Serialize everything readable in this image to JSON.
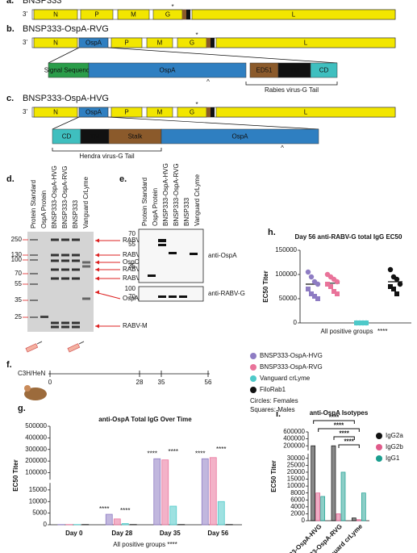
{
  "figure": {
    "a": {
      "label": "a.",
      "construct": "BNSP333",
      "end": "3'",
      "mark": "*",
      "genes": [
        "N",
        "P",
        "M",
        "G",
        "L"
      ]
    },
    "b": {
      "label": "b.",
      "construct": "BNSP333-OspA-RVG",
      "end": "3'",
      "mark": "*",
      "genes": [
        "N",
        "OspA",
        "P",
        "M",
        "G",
        "L"
      ],
      "domains": [
        "Signal Sequence",
        "OspA",
        "ED51",
        "TM",
        "CD"
      ],
      "caret": "^",
      "tail": "Rabies virus-G Tail"
    },
    "c": {
      "label": "c.",
      "construct": "BNSP333-OspA-HVG",
      "end": "3'",
      "mark": "*",
      "genes": [
        "N",
        "OspA",
        "P",
        "M",
        "G",
        "L"
      ],
      "domains": [
        "CD",
        "TM",
        "Stalk",
        "OspA"
      ],
      "caret": "^",
      "tail": "Hendra virus-G Tail"
    },
    "d": {
      "label": "d.",
      "lanes": [
        "Protein Standard",
        "OspA Protein",
        "BNSP333-OspA-HVG",
        "BNSP333-OspA-RVG",
        "BNSP333",
        "Vanguard CrLyme"
      ],
      "markers": [
        "250",
        "130",
        "100",
        "70",
        "55",
        "35",
        "25"
      ],
      "bands": [
        "RABV-L",
        "RABV-G",
        "OspC chimera",
        "RABV-N",
        "RABV-P",
        "OspA",
        "RABV-M"
      ]
    },
    "e": {
      "label": "e.",
      "lanes": [
        "Protein Standard",
        "OspA Protein",
        "BNSP333-OspA-HVG",
        "BNSP333-OspA-RVG",
        "BNSP333",
        "Vanguard CrLyme"
      ],
      "blots": [
        {
          "markers": [
            "70",
            "55",
            "35"
          ],
          "antibody": "anti-OspA"
        },
        {
          "markers": [
            "100",
            "70"
          ],
          "antibody": "anti-RABV-G"
        }
      ]
    },
    "f": {
      "label": "f.",
      "strain": "C3H/HeN",
      "days": [
        "0",
        "28",
        "35",
        "56"
      ],
      "groups": [
        {
          "name": "BNSP333-OspA-HVG",
          "color": "#8e7cc3"
        },
        {
          "name": "BNSP333-OspA-RVG",
          "color": "#e9739a"
        },
        {
          "name": "Vanguard crLyme",
          "color": "#4ec9c9"
        },
        {
          "name": "FiloRab1",
          "color": "#111111"
        }
      ],
      "shapes": [
        "Circles: Females",
        "Squares: Males"
      ]
    }
  },
  "chart_data": [
    {
      "type": "dotplot",
      "label": "h.",
      "title": "Day 56 anti-RABV-G total IgG EC50",
      "ylabel": "EC50 Titer",
      "xlabel": "All positive groups",
      "annotation": "****",
      "ylim": [
        0,
        150000
      ],
      "yticks": [
        0,
        50000,
        100000,
        150000
      ],
      "series": [
        {
          "color": "#8e7cc3",
          "values": 80000,
          "points": [
            105000,
            95000,
            85000,
            80000,
            70000,
            60000,
            55000,
            50000
          ]
        },
        {
          "color": "#e9739a",
          "values": 82000,
          "points": [
            100000,
            95000,
            90000,
            85000,
            80000,
            75000,
            65000,
            60000
          ]
        },
        {
          "color": "#4ec9c9",
          "values": 0,
          "points": [
            0,
            0,
            0,
            0,
            0,
            0,
            0,
            0
          ]
        },
        {
          "color": "#111111",
          "values": 85000,
          "points": [
            110000,
            95000,
            90000,
            80000,
            75000,
            70000,
            60000
          ]
        }
      ]
    },
    {
      "type": "bar",
      "label": "g.",
      "title": "anti-OspA Total IgG Over Time",
      "ylabel": "EC50 Titer",
      "note": "All positive groups ****",
      "categories": [
        "Day 0",
        "Day 28",
        "Day 35",
        "Day 56"
      ],
      "ylim": [
        0,
        500000
      ],
      "ybreak": [
        15000,
        100000
      ],
      "yticks": [
        0,
        5000,
        10000,
        15000,
        100000,
        200000,
        300000,
        400000,
        500000
      ],
      "series": [
        {
          "color": "#8e7cc3",
          "values": [
            100,
            4500,
            220000,
            220000
          ],
          "sig": [
            null,
            "****",
            "****",
            "****"
          ]
        },
        {
          "color": "#e9739a",
          "values": [
            100,
            2500,
            210000,
            230000
          ],
          "sig": [
            null,
            "****",
            "****",
            "****"
          ]
        },
        {
          "color": "#4ec9c9",
          "values": [
            100,
            500,
            8000,
            10000
          ]
        },
        {
          "color": "#111111",
          "values": [
            100,
            100,
            100,
            100
          ]
        }
      ]
    },
    {
      "type": "bar",
      "label": "i.",
      "title": "anti-OspA Isotypes",
      "ylabel": "EC50 Titer",
      "legend": "right",
      "categories": [
        "BNSP333-OspA-HVG",
        "BNSP333-OspA-RVG",
        "Vanguard crLyme"
      ],
      "ylim": [
        0,
        600000
      ],
      "ybreak": [
        30000,
        200000
      ],
      "yticks": [
        0,
        2000,
        4000,
        6000,
        8000,
        10000,
        15000,
        20000,
        25000,
        30000,
        200000,
        400000,
        600000
      ],
      "significance": [
        "****",
        "****",
        "****",
        "****"
      ],
      "series": [
        {
          "name": "IgG2a",
          "color": "#111111",
          "values": [
            200000,
            200000,
            800
          ]
        },
        {
          "name": "IgG2b",
          "color": "#e05a8a",
          "values": [
            8000,
            2000,
            300
          ]
        },
        {
          "name": "IgG1",
          "color": "#1a9e8f",
          "values": [
            7000,
            20000,
            8000
          ]
        }
      ]
    }
  ]
}
